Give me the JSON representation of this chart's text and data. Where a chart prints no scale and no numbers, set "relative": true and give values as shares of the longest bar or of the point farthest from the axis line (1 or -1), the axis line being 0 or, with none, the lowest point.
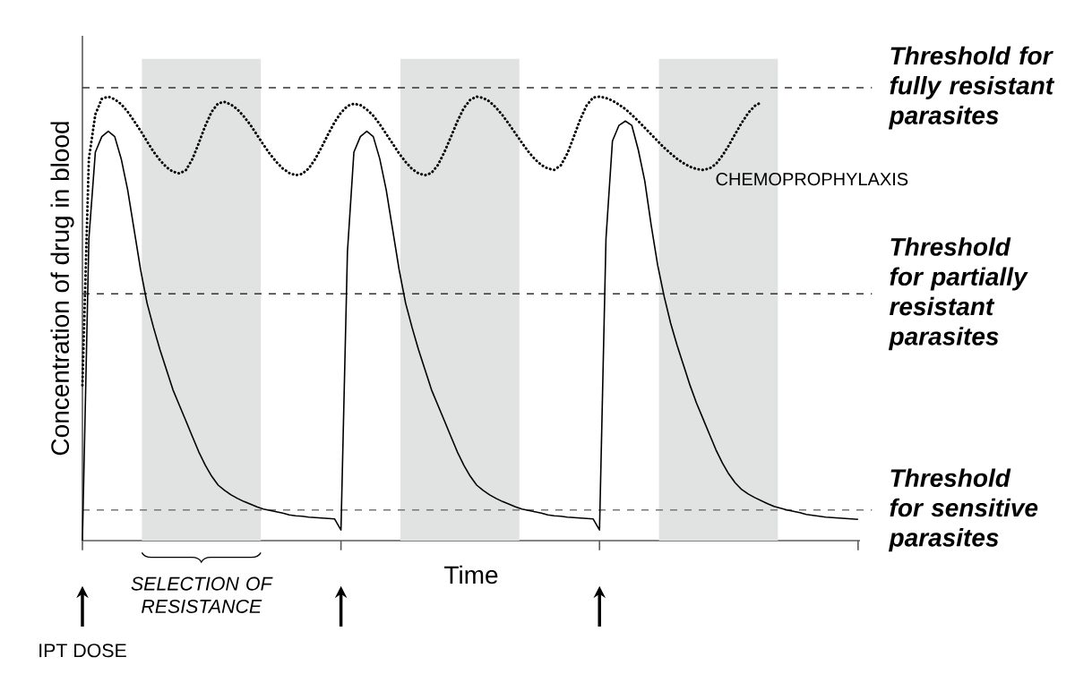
{
  "chart_data": {
    "type": "line",
    "relative": true,
    "xlabel": "Time",
    "ylabel": "Concentration of drug in blood",
    "categories": [
      null,
      null,
      null,
      null,
      null,
      null,
      null,
      null,
      null,
      null,
      null,
      null,
      null,
      null,
      null,
      null,
      null,
      null,
      null,
      null,
      null,
      null,
      null,
      null,
      null,
      null,
      null,
      null,
      null,
      null,
      null,
      null,
      null,
      null,
      null,
      null,
      null,
      null,
      null,
      null,
      null,
      null,
      null,
      null,
      null,
      null,
      null,
      null,
      null,
      null,
      null,
      null,
      null,
      null,
      null,
      null,
      null,
      null,
      null,
      null,
      null,
      null,
      null,
      null,
      null,
      null,
      null,
      null,
      null,
      null,
      null,
      null,
      null,
      null,
      null,
      null,
      null,
      null,
      null,
      null,
      null,
      null,
      null,
      null,
      null,
      null,
      null,
      null,
      null,
      null,
      null,
      null,
      null,
      null,
      null,
      null,
      null,
      null,
      null,
      null,
      null,
      null,
      null,
      null,
      null,
      null,
      null,
      null,
      null,
      null,
      null,
      null,
      null,
      null,
      null,
      null,
      null,
      null,
      null,
      null,
      null
    ],
    "series": [
      {
        "color": "#000000",
        "line_style": "solid",
        "values": [
          0,
          0.68,
          0.875,
          0.91,
          0.922,
          0.91,
          0.86,
          0.79,
          0.7,
          0.61,
          0.535,
          0.48,
          0.43,
          0.385,
          0.34,
          0.305,
          0.27,
          0.235,
          0.2,
          0.17,
          0.145,
          0.125,
          0.113,
          0.103,
          0.095,
          0.088,
          0.082,
          0.076,
          0.071,
          0.068,
          0.065,
          0.062,
          0.058,
          0.056,
          0.055,
          0.053,
          0.052,
          0.051,
          0.05,
          0.049,
          0.024,
          0.65,
          0.875,
          0.91,
          0.922,
          0.91,
          0.86,
          0.79,
          0.7,
          0.61,
          0.535,
          0.48,
          0.43,
          0.385,
          0.34,
          0.305,
          0.27,
          0.235,
          0.2,
          0.17,
          0.145,
          0.125,
          0.113,
          0.103,
          0.095,
          0.088,
          0.082,
          0.076,
          0.071,
          0.068,
          0.065,
          0.062,
          0.058,
          0.056,
          0.055,
          0.053,
          0.052,
          0.051,
          0.05,
          0.049,
          0.024,
          0.68,
          0.9,
          0.935,
          0.945,
          0.935,
          0.88,
          0.81,
          0.71,
          0.62,
          0.55,
          0.49,
          0.44,
          0.395,
          0.35,
          0.31,
          0.275,
          0.24,
          0.205,
          0.175,
          0.15,
          0.13,
          0.115,
          0.105,
          0.097,
          0.09,
          0.083,
          0.077,
          0.073,
          0.069,
          0.066,
          0.063,
          0.059,
          0.057,
          0.055,
          0.053,
          0.052,
          0.051,
          0.05,
          0.049,
          0.048
        ]
      },
      {
        "name": "CHEMOPROPHYLAXIS",
        "color": "#000000",
        "line_style": "dotted",
        "values": [
          0.35,
          0.86,
          0.96,
          0.995,
          1.0,
          0.994,
          0.983,
          0.966,
          0.945,
          0.923,
          0.899,
          0.876,
          0.857,
          0.841,
          0.831,
          0.827,
          0.834,
          0.859,
          0.895,
          0.934,
          0.966,
          0.985,
          0.988,
          0.982,
          0.971,
          0.955,
          0.936,
          0.914,
          0.892,
          0.871,
          0.853,
          0.838,
          0.828,
          0.823,
          0.826,
          0.838,
          0.859,
          0.886,
          0.915,
          0.942,
          0.964,
          0.979,
          0.984,
          0.981,
          0.971,
          0.957,
          0.938,
          0.916,
          0.894,
          0.872,
          0.853,
          0.837,
          0.827,
          0.823,
          0.828,
          0.846,
          0.875,
          0.909,
          0.944,
          0.974,
          0.993,
          1.0,
          0.997,
          0.989,
          0.975,
          0.958,
          0.938,
          0.917,
          0.896,
          0.876,
          0.859,
          0.846,
          0.838,
          0.835,
          0.845,
          0.871,
          0.909,
          0.948,
          0.98,
          0.998,
          1.0,
          0.997,
          0.991,
          0.982,
          0.972,
          0.959,
          0.945,
          0.93,
          0.915,
          0.9,
          0.885,
          0.872,
          0.86,
          0.85,
          0.842,
          0.837,
          0.835,
          0.838,
          0.848,
          0.867,
          0.89,
          0.916,
          0.941,
          0.963,
          0.979,
          0.987,
          null,
          null,
          null,
          null,
          null,
          null,
          null,
          null,
          null,
          null,
          null,
          null,
          null,
          null,
          null
        ]
      }
    ],
    "ref_lines": [
      {
        "axis": "y",
        "value": 1.02,
        "label": "Threshold for fully resistant parasites",
        "color": "#333333",
        "line_style": "dashed"
      },
      {
        "axis": "y",
        "value": 0.556,
        "label": "Threshold for partially resistant parasites",
        "color": "#333333",
        "line_style": "dashed"
      },
      {
        "axis": "y",
        "value": 0.069,
        "label": "Threshold for sensitive parasites",
        "color": "#777777",
        "line_style": "dashed"
      }
    ],
    "annotations": [
      "SELECTION OF RESISTANCE",
      "IPT DOSE"
    ]
  }
}
